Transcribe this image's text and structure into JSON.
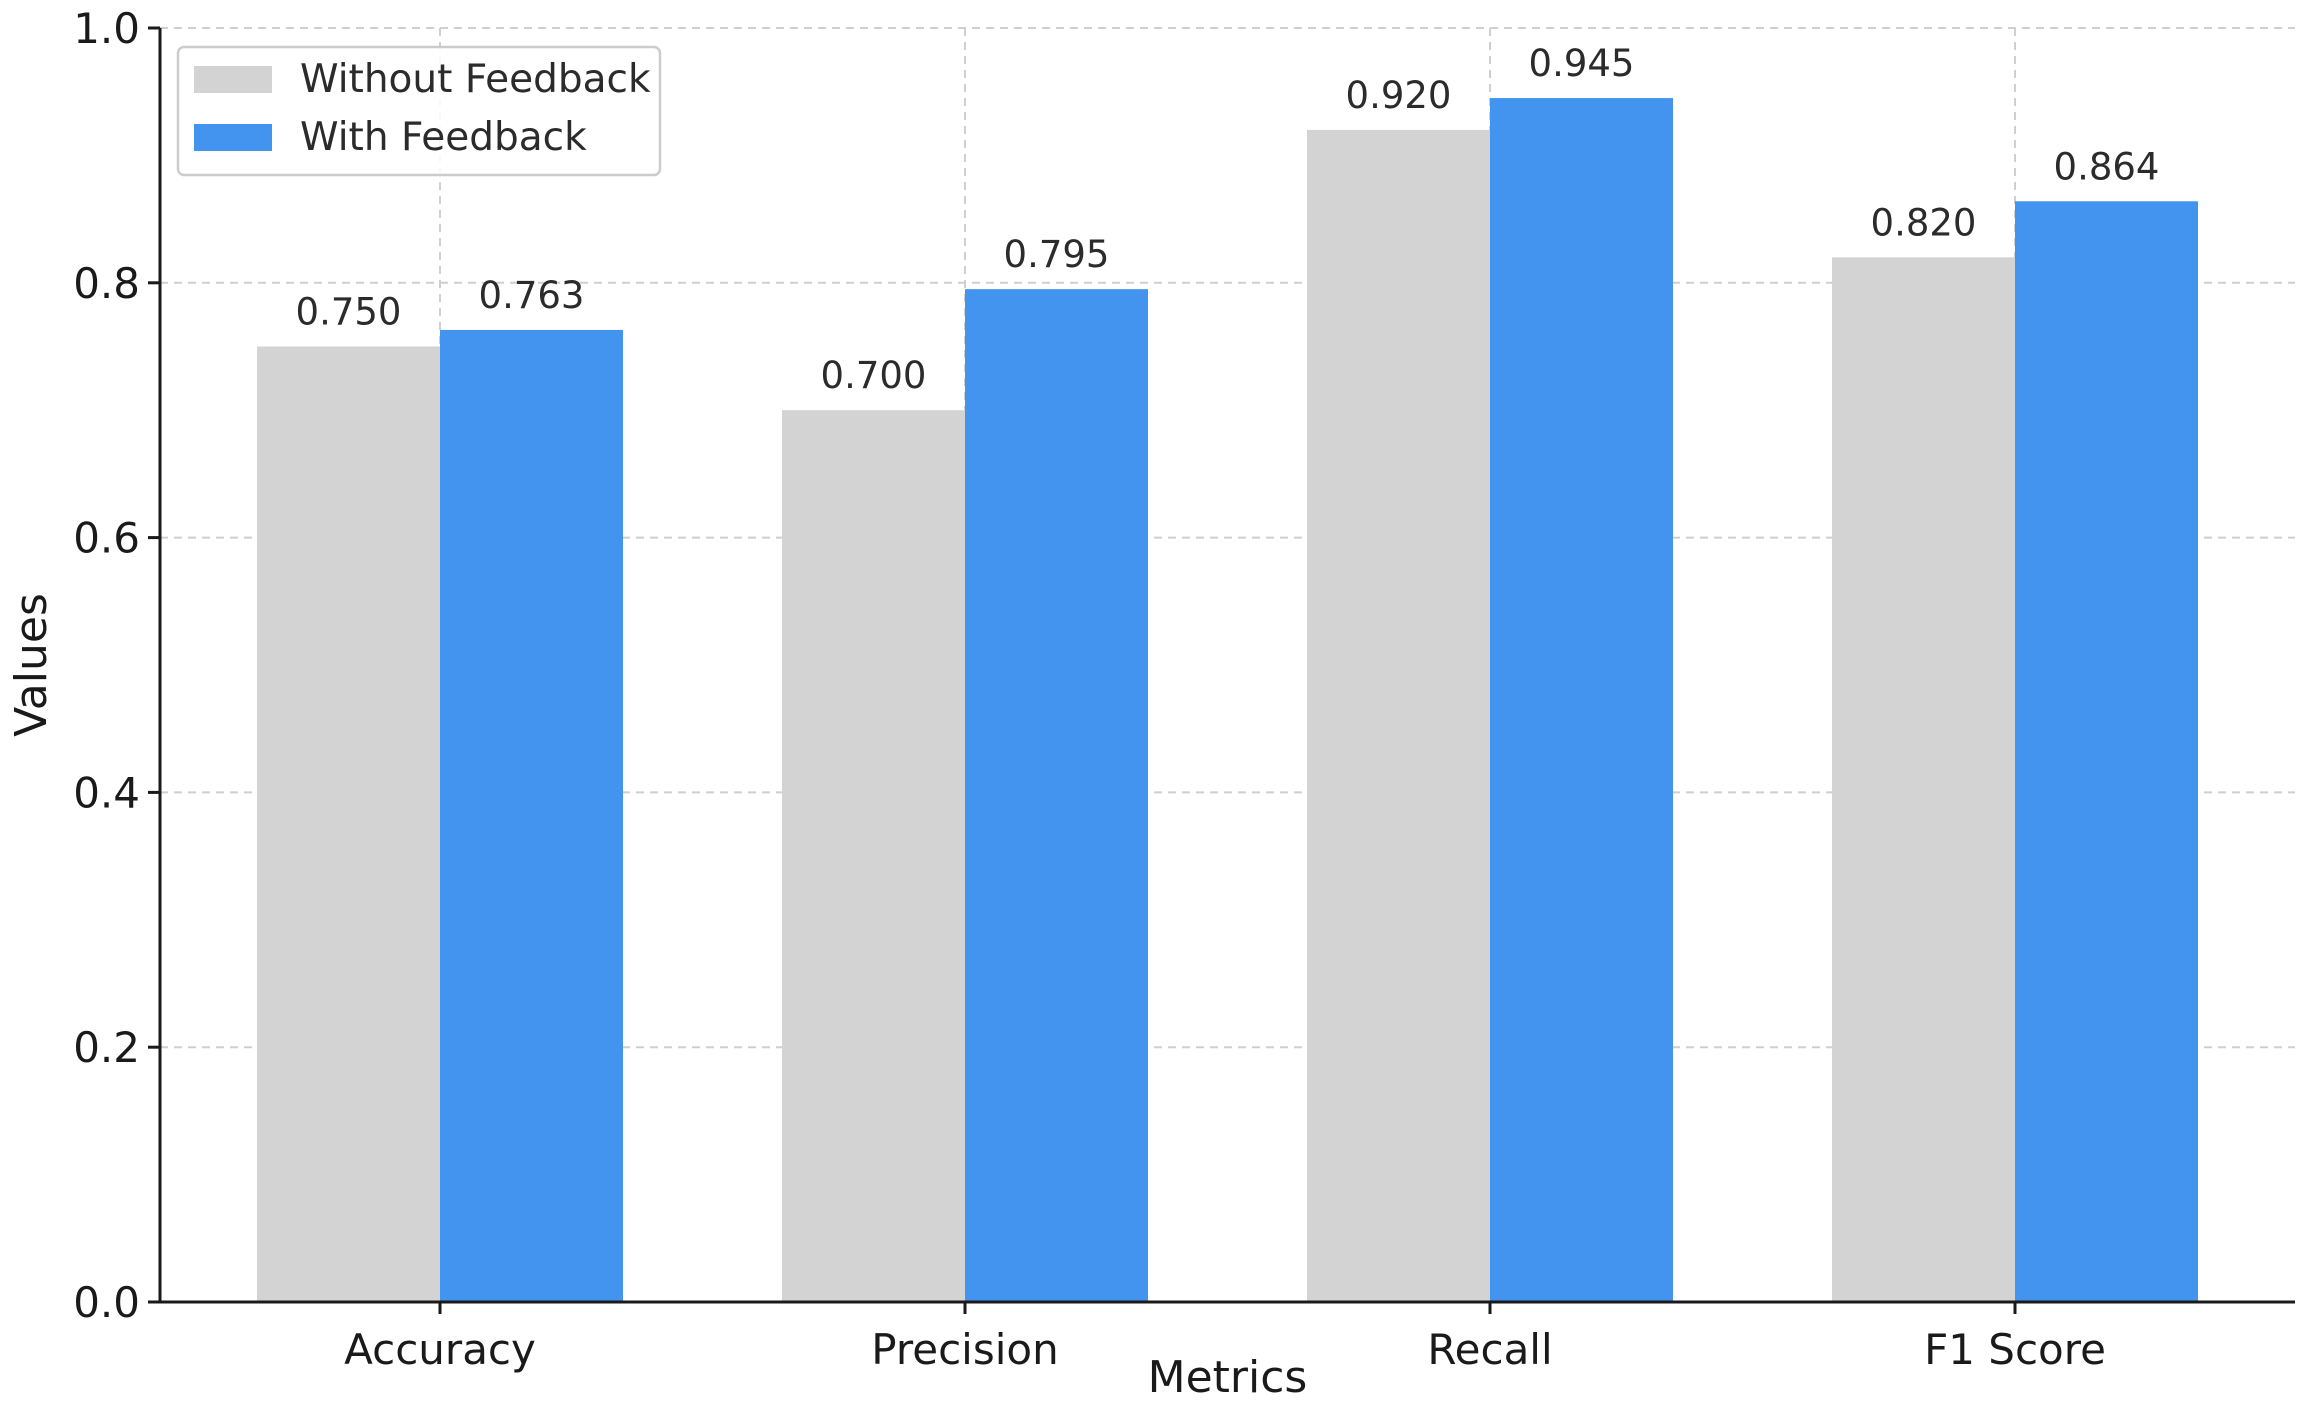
{
  "chart_data": {
    "type": "bar",
    "title": "",
    "xlabel": "Metrics",
    "ylabel": "Values",
    "categories": [
      "Accuracy",
      "Precision",
      "Recall",
      "F1 Score"
    ],
    "series": [
      {
        "name": "Without Feedback",
        "color": "#d3d3d3",
        "values": [
          0.75,
          0.7,
          0.92,
          0.82
        ],
        "labels": [
          "0.750",
          "0.700",
          "0.920",
          "0.820"
        ]
      },
      {
        "name": "With Feedback",
        "color": "#4394ee",
        "values": [
          0.763,
          0.795,
          0.945,
          0.864
        ],
        "labels": [
          "0.763",
          "0.795",
          "0.945",
          "0.864"
        ]
      }
    ],
    "ylim": [
      0,
      1.0
    ],
    "yticks": [
      "0.0",
      "0.2",
      "0.4",
      "0.6",
      "0.8",
      "1.0"
    ],
    "grid": true,
    "legend_position": "top-left"
  }
}
